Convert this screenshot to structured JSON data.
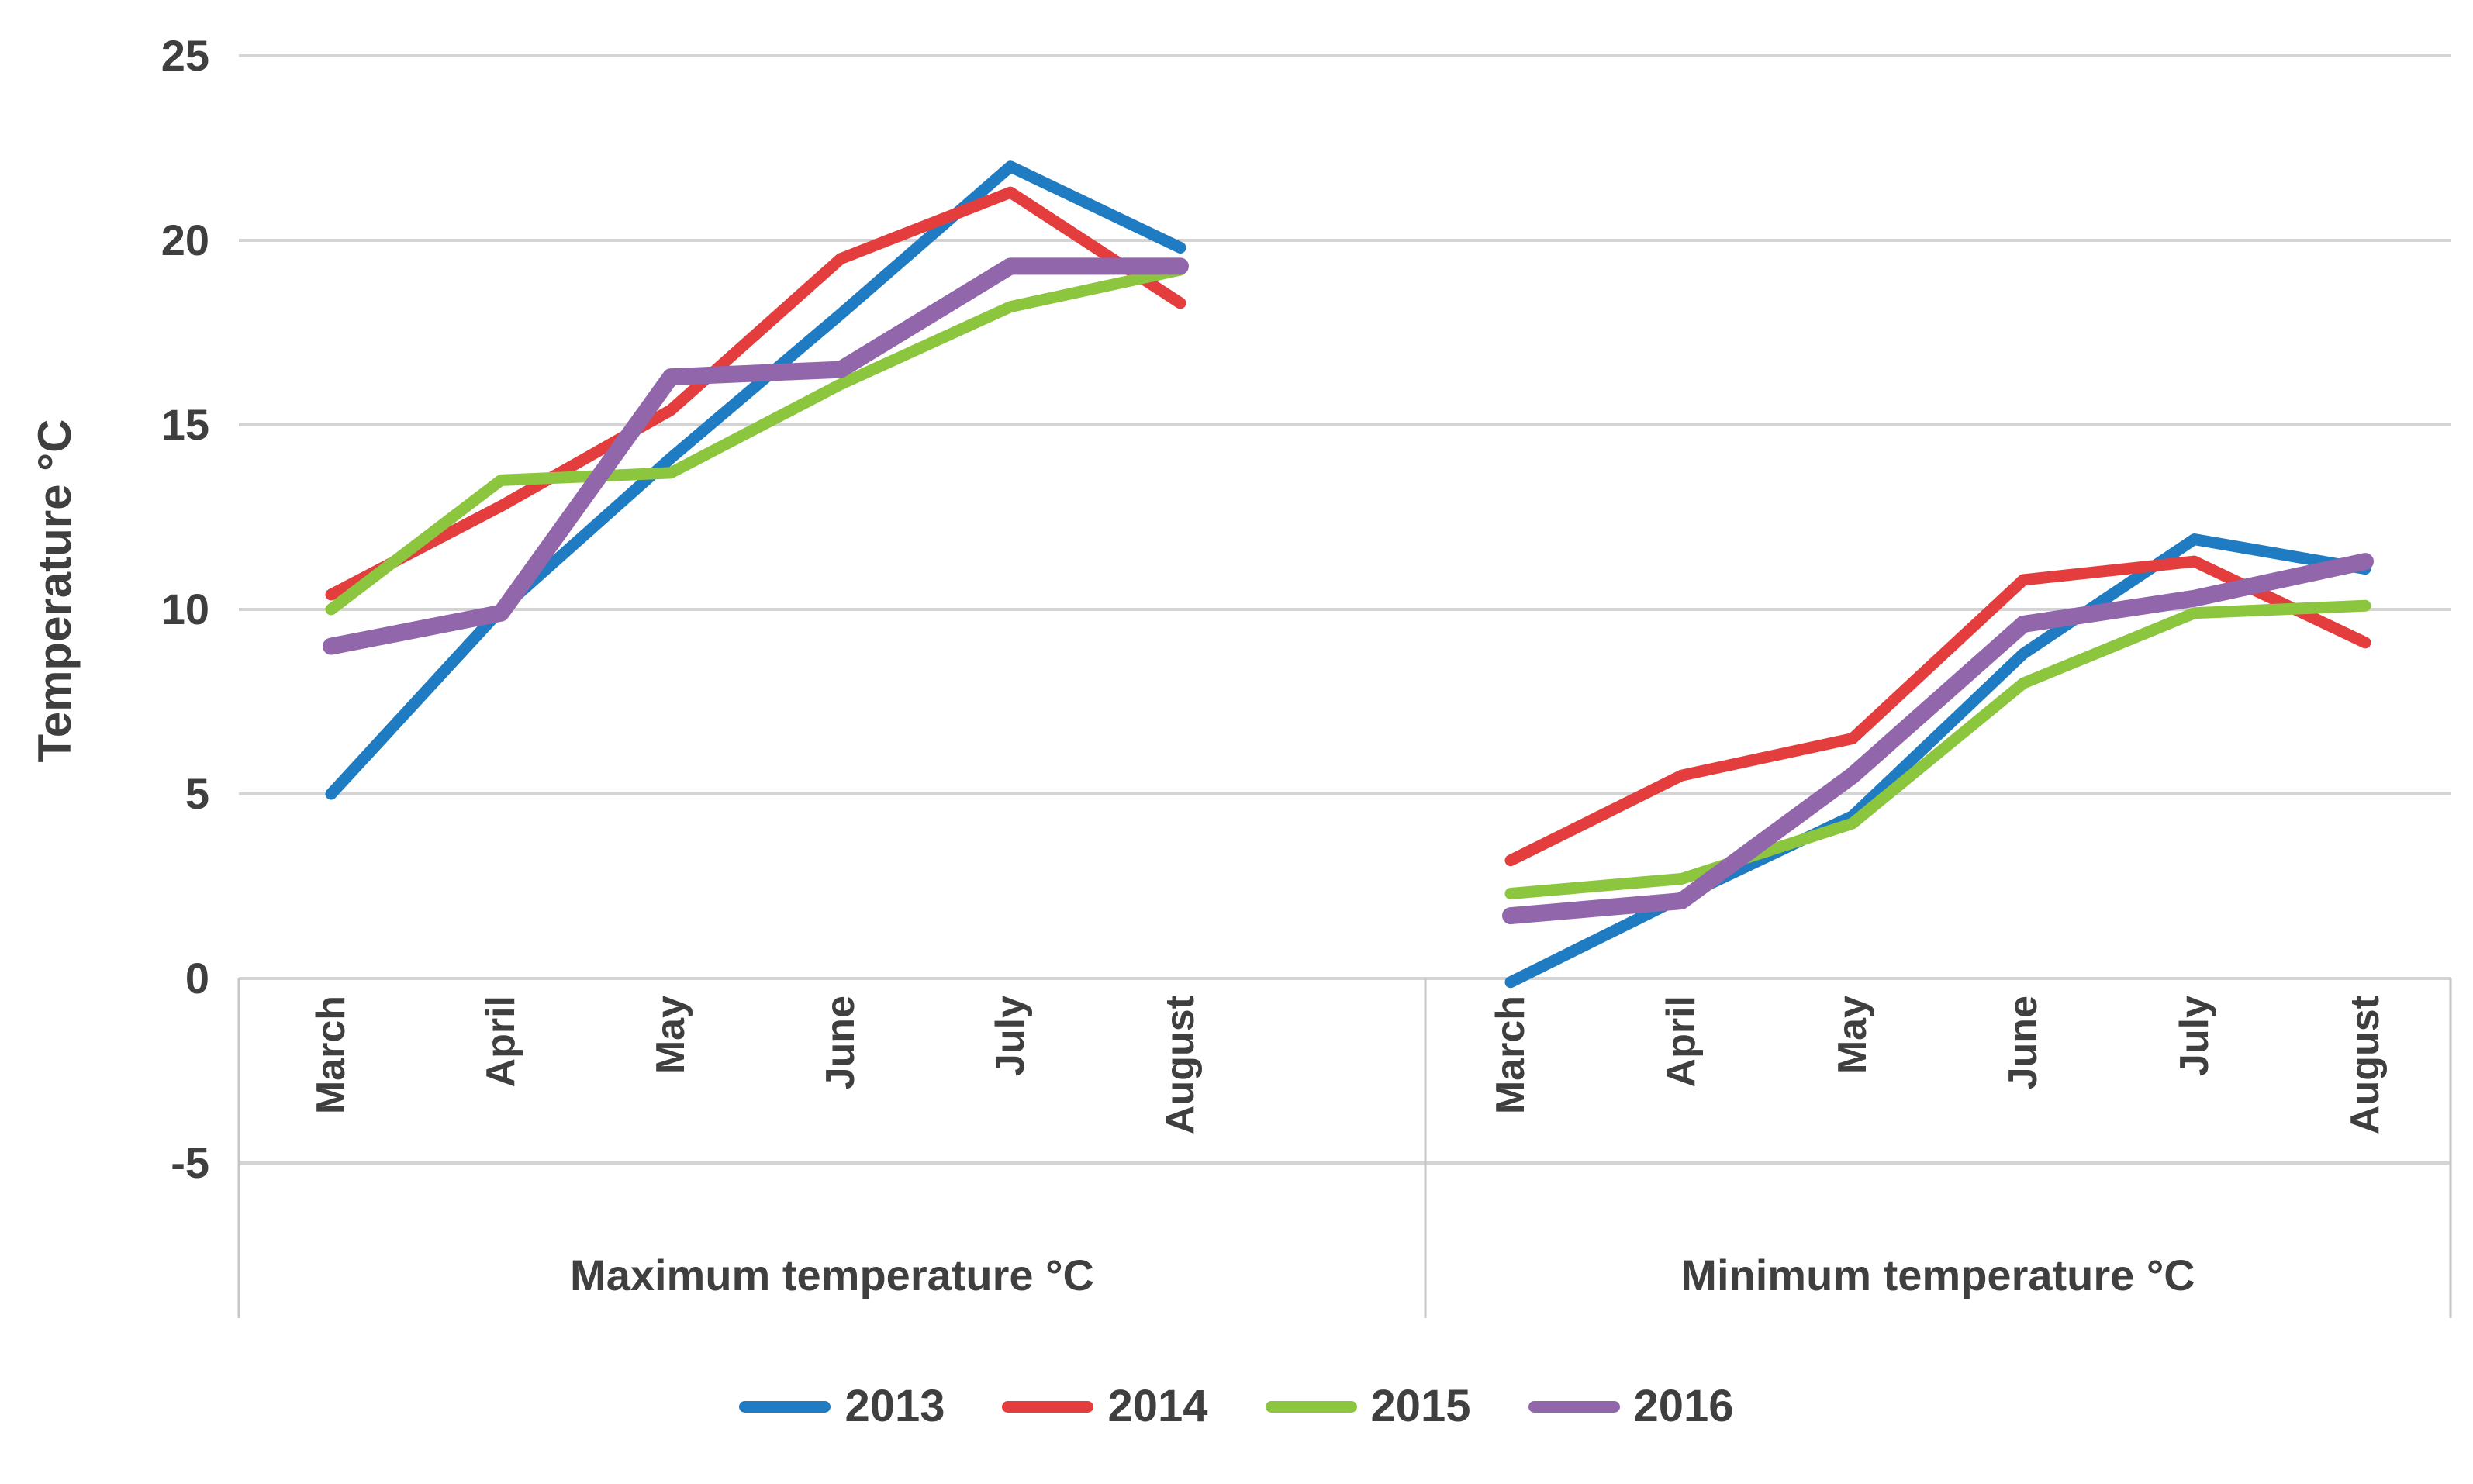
{
  "chart_data": {
    "type": "line",
    "title": "",
    "ylabel": "Temperature °C",
    "ylim": [
      -5,
      25
    ],
    "yticks": [
      25,
      20,
      15,
      10,
      5,
      0,
      -5
    ],
    "grid": true,
    "legend_position": "bottom",
    "months": [
      "March",
      "April",
      "May",
      "June",
      "July",
      "August"
    ],
    "panels": [
      {
        "key": "max",
        "label": "Maximum temperature °C"
      },
      {
        "key": "min",
        "label": "Minimum temperature °C"
      }
    ],
    "series": [
      {
        "name": "2013",
        "color": "#1f7cc2",
        "max": [
          5.0,
          10.0,
          14.1,
          18.0,
          22.0,
          19.8
        ],
        "min": [
          -0.1,
          2.2,
          4.4,
          8.8,
          11.9,
          11.1
        ]
      },
      {
        "name": "2014",
        "color": "#e43d3d",
        "max": [
          10.4,
          12.8,
          15.4,
          19.5,
          21.3,
          18.3
        ],
        "min": [
          3.2,
          5.5,
          6.5,
          10.8,
          11.3,
          9.1
        ]
      },
      {
        "name": "2015",
        "color": "#8cc63e",
        "max": [
          10.0,
          13.5,
          13.7,
          16.1,
          18.2,
          19.2
        ],
        "min": [
          2.3,
          2.7,
          4.2,
          8.0,
          9.9,
          10.1
        ]
      },
      {
        "name": "2016",
        "color": "#9166ab",
        "max": [
          9.0,
          9.9,
          16.3,
          16.5,
          19.3,
          19.3
        ],
        "min": [
          1.7,
          2.1,
          5.5,
          9.6,
          10.3,
          11.3
        ]
      }
    ],
    "colors": {
      "gridline": "#d4d4d4",
      "axis_line": "#c6c6c6",
      "axis_text": "#3f3f3f"
    }
  }
}
